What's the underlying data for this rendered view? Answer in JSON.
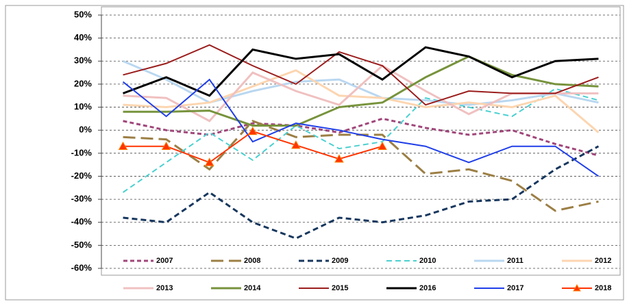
{
  "chart_data": {
    "type": "line",
    "categories": [
      null,
      null,
      null,
      null,
      null,
      null,
      null,
      null,
      null,
      null,
      null,
      null
    ],
    "ylim": [
      -60,
      50
    ],
    "yticks": [
      {
        "value": -60,
        "label": "-60%"
      },
      {
        "value": -50,
        "label": "-50%"
      },
      {
        "value": -40,
        "label": "-40%"
      },
      {
        "value": -30,
        "label": "-30%"
      },
      {
        "value": -20,
        "label": "-20%"
      },
      {
        "value": -10,
        "label": "-10%"
      },
      {
        "value": 0,
        "label": "0%"
      },
      {
        "value": 10,
        "label": "10%"
      },
      {
        "value": 20,
        "label": "20%"
      },
      {
        "value": 30,
        "label": "30%"
      },
      {
        "value": 40,
        "label": "40%"
      },
      {
        "value": 50,
        "label": "50%"
      }
    ],
    "grid": true,
    "legend": "bottom",
    "series": [
      {
        "name": "2007",
        "color": "#a0467a",
        "values": [
          4,
          0,
          -2,
          3,
          2,
          -1,
          5,
          1,
          -2,
          0,
          -6,
          -11
        ]
      },
      {
        "name": "2008",
        "color": "#9c7f45",
        "values": [
          -3,
          -4,
          -17,
          4,
          -3,
          -2,
          -2,
          -19,
          -17,
          -22,
          -35,
          -31
        ]
      },
      {
        "name": "2009",
        "color": "#17375e",
        "values": [
          -38,
          -40,
          -27,
          -40,
          -47,
          -38,
          -40,
          -37,
          -31,
          -30,
          -17,
          -7
        ]
      },
      {
        "name": "2010",
        "color": "#4bd0d0",
        "values": [
          -27,
          -14,
          -1,
          -13,
          2,
          -8,
          -5,
          14,
          10,
          6,
          18,
          13
        ]
      },
      {
        "name": "2011",
        "color": "#b9d7f0",
        "values": [
          30,
          22,
          12,
          17,
          21,
          22,
          14,
          13,
          11,
          13,
          16,
          12
        ]
      },
      {
        "name": "2012",
        "color": "#fcd5b0",
        "values": [
          11,
          10,
          12,
          19,
          26,
          15,
          14,
          10,
          12,
          10,
          15,
          -1
        ]
      },
      {
        "name": "2013",
        "color": "#f0c0c0",
        "values": [
          15,
          14,
          4,
          25,
          17,
          11,
          28,
          17,
          7,
          16,
          16,
          16
        ]
      },
      {
        "name": "2014",
        "color": "#77933c",
        "values": [
          8,
          8,
          8.5,
          2,
          2,
          10,
          12,
          23,
          32,
          24,
          20,
          19
        ]
      },
      {
        "name": "2015",
        "color": "#9b1c1c",
        "values": [
          24,
          29,
          37,
          28,
          20,
          34,
          28,
          11,
          17,
          16,
          16,
          23
        ]
      },
      {
        "name": "2016",
        "color": "#000000",
        "values": [
          16,
          23,
          15,
          35,
          31,
          33,
          22,
          36,
          32,
          23,
          30,
          31
        ]
      },
      {
        "name": "2017",
        "color": "#1f3ee8",
        "values": [
          21,
          6,
          22,
          -5,
          3,
          0,
          -4,
          -7,
          -14,
          -7,
          -7,
          -20
        ]
      },
      {
        "name": "2018",
        "color": "#ff3300",
        "marker": "triangle",
        "values": [
          -7,
          -7,
          -14,
          -0.5,
          -6.5,
          -12.5,
          -7,
          null,
          null,
          null,
          null,
          null
        ]
      }
    ]
  }
}
